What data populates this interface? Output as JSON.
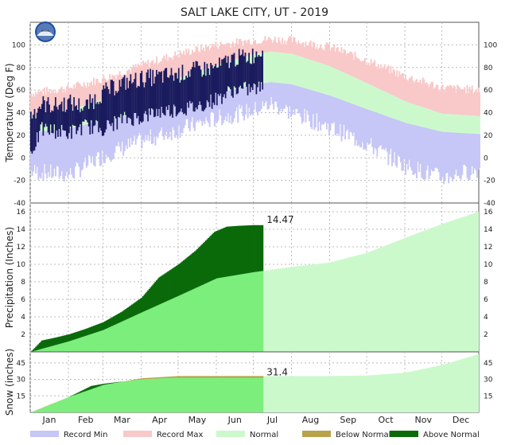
{
  "title": "SALT LAKE CITY, UT - 2019",
  "colors": {
    "record_min": "#c6c6f7",
    "record_max": "#f9c8c8",
    "normal_band": "#ccf9cc",
    "normal_fill": "#7cee7c",
    "observed_temp": "#1a1a5e",
    "below_normal": "#b8a34a",
    "above_normal": "#0a6a0a",
    "grid": "#bbbbbb"
  },
  "chart_data": [
    {
      "type": "area",
      "panel": "temperature",
      "ylabel": "Temperature (Deg F)",
      "ylim": [
        -40,
        120
      ],
      "yticks": [
        -40,
        -20,
        0,
        20,
        40,
        60,
        80,
        100
      ],
      "grid": true,
      "x_days": [
        1,
        32,
        60,
        91,
        121,
        152,
        182,
        196,
        213,
        244,
        274,
        305,
        335,
        365
      ],
      "record_max": [
        57,
        62,
        70,
        82,
        92,
        100,
        104,
        105,
        104,
        98,
        86,
        72,
        62,
        60
      ],
      "normal_high": [
        37,
        42,
        52,
        61,
        71,
        82,
        92,
        94,
        92,
        81,
        66,
        50,
        39,
        37
      ],
      "normal_low": [
        22,
        26,
        33,
        40,
        48,
        57,
        65,
        67,
        65,
        55,
        43,
        31,
        23,
        21
      ],
      "record_min": [
        -12,
        -15,
        2,
        15,
        25,
        35,
        42,
        48,
        40,
        27,
        12,
        -7,
        -18,
        -10
      ],
      "observed": {
        "x_days": [
          1,
          10,
          20,
          32,
          45,
          60,
          75,
          91,
          105,
          121,
          135,
          152,
          165,
          180,
          189
        ],
        "high": [
          38,
          48,
          46,
          49,
          45,
          58,
          66,
          70,
          72,
          74,
          78,
          80,
          88,
          90,
          96
        ],
        "low": [
          5,
          25,
          24,
          22,
          28,
          26,
          34,
          36,
          41,
          43,
          45,
          52,
          60,
          61,
          62
        ]
      }
    },
    {
      "type": "area",
      "panel": "precipitation",
      "ylabel": "Precipitation (Inches)",
      "ylim": [
        0,
        17
      ],
      "yticks": [
        2,
        4,
        6,
        8,
        10,
        12,
        14,
        16
      ],
      "grid": true,
      "normal_x_days": [
        1,
        32,
        60,
        91,
        121,
        152,
        182,
        213,
        244,
        274,
        305,
        335,
        365
      ],
      "normal": [
        0,
        1.2,
        2.5,
        4.5,
        6.4,
        8.4,
        9.1,
        9.7,
        10.2,
        11.3,
        13.0,
        14.6,
        16.0
      ],
      "observed_x_days": [
        1,
        10,
        20,
        32,
        45,
        60,
        75,
        91,
        105,
        121,
        135,
        150,
        160,
        170,
        182,
        189
      ],
      "observed": [
        0,
        1.3,
        1.6,
        2.0,
        2.6,
        3.4,
        4.6,
        6.2,
        8.5,
        10.0,
        11.6,
        13.7,
        14.3,
        14.4,
        14.47,
        14.47
      ],
      "ytd_label": "14.47"
    },
    {
      "type": "area",
      "panel": "snow",
      "ylabel": "Snow (inches)",
      "ylim": [
        0,
        55
      ],
      "yticks": [
        15,
        30,
        45
      ],
      "grid": true,
      "normal_x_days": [
        1,
        32,
        60,
        91,
        121,
        152,
        182,
        213,
        244,
        274,
        305,
        335,
        365
      ],
      "normal": [
        0,
        14,
        25,
        31,
        33,
        33,
        33,
        33,
        33,
        33.5,
        36,
        43,
        53
      ],
      "observed_x_days": [
        1,
        15,
        32,
        50,
        60,
        75,
        91,
        110,
        121,
        189
      ],
      "observed": [
        0,
        6,
        14,
        24,
        26,
        28,
        30,
        31.2,
        31.4,
        31.4
      ],
      "ytd_label": "31.4"
    }
  ],
  "x_axis": {
    "months": [
      "Jan",
      "Feb",
      "Mar",
      "Apr",
      "May",
      "Jun",
      "Jul",
      "Aug",
      "Sep",
      "Oct",
      "Nov",
      "Dec"
    ]
  },
  "legend": [
    {
      "label": "Record Min",
      "color": "#c6c6f7"
    },
    {
      "label": "Record Max",
      "color": "#f9c8c8"
    },
    {
      "label": "Normal",
      "color": "#ccf9cc"
    },
    {
      "label": "Below Normal",
      "color": "#b8a34a"
    },
    {
      "label": "Above Normal",
      "color": "#0a6a0a"
    }
  ],
  "logo_text": "NOAA"
}
